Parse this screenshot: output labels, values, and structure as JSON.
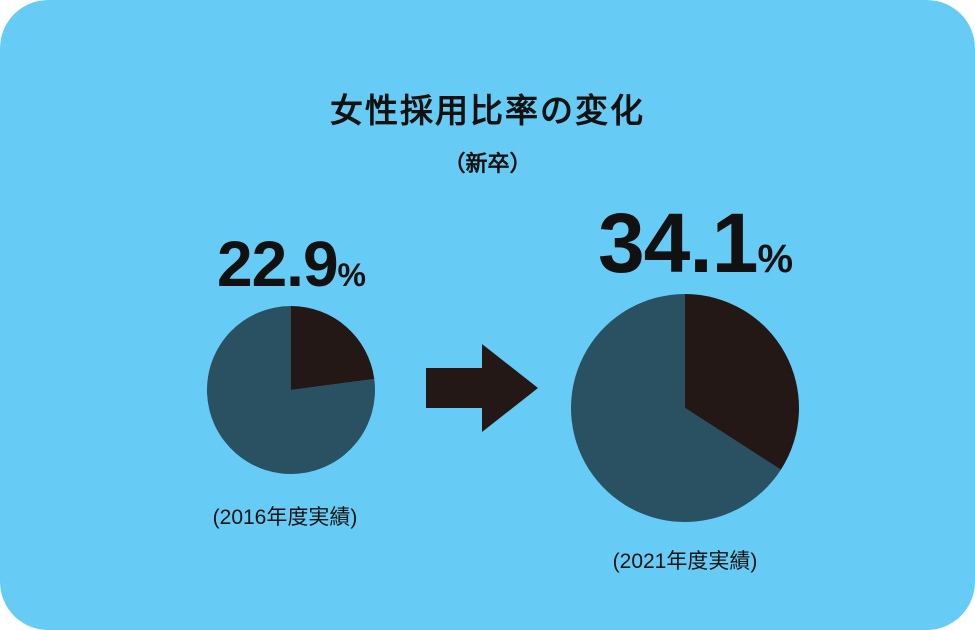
{
  "colors": {
    "background": "#66CBF5",
    "female_share": "#231815",
    "other_share": "#2A5162",
    "arrow": "#231815"
  },
  "title": "女性採用比率の変化",
  "subtitle": "（新卒）",
  "chart_data": [
    {
      "type": "pie",
      "period": "(2016年度実績)",
      "value_label": "22.9",
      "unit": "%",
      "slices": [
        {
          "key": "female",
          "value": 22.9
        },
        {
          "key": "other",
          "value": 77.1
        }
      ]
    },
    {
      "type": "pie",
      "period": "(2021年度実績)",
      "value_label": "34.1",
      "unit": "%",
      "slices": [
        {
          "key": "female",
          "value": 34.1
        },
        {
          "key": "other",
          "value": 65.9
        }
      ]
    }
  ]
}
